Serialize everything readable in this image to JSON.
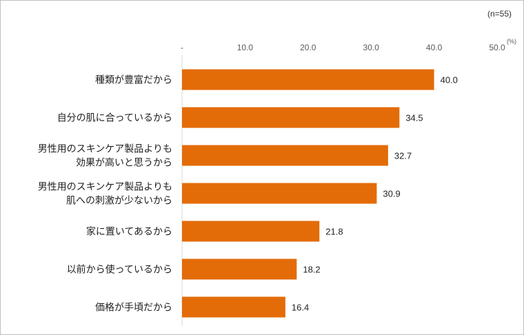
{
  "chart_data": {
    "type": "bar",
    "orientation": "horizontal",
    "note": "(n=55)",
    "unit": "(%)",
    "xlim": [
      0,
      50
    ],
    "ticks": [
      {
        "value": 0,
        "label": "-"
      },
      {
        "value": 10,
        "label": "10.0"
      },
      {
        "value": 20,
        "label": "20.0"
      },
      {
        "value": 30,
        "label": "30.0"
      },
      {
        "value": 40,
        "label": "40.0"
      },
      {
        "value": 50,
        "label": "50.0"
      }
    ],
    "categories": [
      [
        "種類が豊富だから"
      ],
      [
        "自分の肌に合っているから"
      ],
      [
        "男性用のスキンケア製品よりも",
        "効果が高いと思うから"
      ],
      [
        "男性用のスキンケア製品よりも",
        "肌への刺激が少ないから"
      ],
      [
        "家に置いてあるから"
      ],
      [
        "以前から使っているから"
      ],
      [
        "価格が手頃だから"
      ]
    ],
    "values": [
      40.0,
      34.5,
      32.7,
      30.9,
      21.8,
      18.2,
      16.4
    ],
    "value_labels": [
      "40.0",
      "34.5",
      "32.7",
      "30.9",
      "21.8",
      "18.2",
      "16.4"
    ],
    "bar_color": "#e36c09",
    "grid": false,
    "legend": "none"
  }
}
